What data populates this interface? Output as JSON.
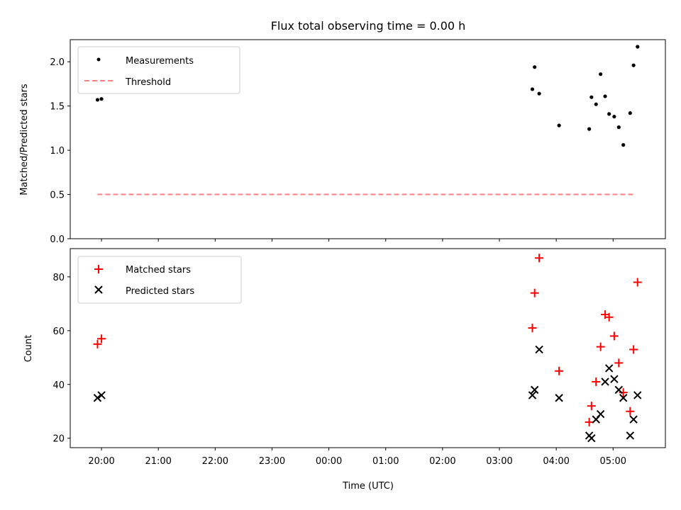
{
  "title": "Flux total observing time = 0.00 h",
  "colors": {
    "measurement": "#000000",
    "threshold": "#ff7f7f",
    "matched": "#ff0000",
    "predicted": "#000000"
  },
  "chart_data": [
    {
      "type": "scatter",
      "title": "Flux total observing time = 0.00 h",
      "xlabel": "",
      "ylabel": "Matched/Predicted stars",
      "ylim": [
        0.0,
        2.25
      ],
      "yticks": [
        0.0,
        0.5,
        1.0,
        1.5,
        2.0
      ],
      "ytick_labels": [
        "0.0",
        "0.5",
        "1.0",
        "1.5",
        "2.0"
      ],
      "x_unit": "hours since 20:00 UTC",
      "xlim": [
        -0.55,
        9.92
      ],
      "legend": {
        "placement": "top-left",
        "entries": [
          "Measurements",
          "Threshold"
        ]
      },
      "series": [
        {
          "name": "Measurements",
          "marker": "dot",
          "points": [
            {
              "x": -0.07,
              "y": 1.57
            },
            {
              "x": 0.0,
              "y": 1.58
            },
            {
              "x": 7.58,
              "y": 1.69
            },
            {
              "x": 7.62,
              "y": 1.94
            },
            {
              "x": 7.7,
              "y": 1.64
            },
            {
              "x": 8.05,
              "y": 1.28
            },
            {
              "x": 8.58,
              "y": 1.24
            },
            {
              "x": 8.62,
              "y": 1.6
            },
            {
              "x": 8.7,
              "y": 1.52
            },
            {
              "x": 8.78,
              "y": 1.86
            },
            {
              "x": 8.86,
              "y": 1.61
            },
            {
              "x": 8.93,
              "y": 1.41
            },
            {
              "x": 9.02,
              "y": 1.38
            },
            {
              "x": 9.1,
              "y": 1.26
            },
            {
              "x": 9.18,
              "y": 1.06
            },
            {
              "x": 9.3,
              "y": 1.42
            },
            {
              "x": 9.36,
              "y": 1.96
            },
            {
              "x": 9.43,
              "y": 2.17
            }
          ]
        },
        {
          "name": "Threshold",
          "marker": "dashed-line",
          "points": [
            {
              "x": -0.07,
              "y": 0.5
            },
            {
              "x": 9.38,
              "y": 0.5
            }
          ]
        }
      ]
    },
    {
      "type": "scatter",
      "title": "",
      "xlabel": "Time (UTC)",
      "ylabel": "Count",
      "ylim": [
        16.5,
        90.5
      ],
      "yticks": [
        20,
        40,
        60,
        80
      ],
      "ytick_labels": [
        "20",
        "40",
        "60",
        "80"
      ],
      "x_unit": "hours since 20:00 UTC",
      "xlim": [
        -0.55,
        9.92
      ],
      "xticks": [
        0,
        1,
        2,
        3,
        4,
        5,
        6,
        7,
        8,
        9
      ],
      "xtick_labels": [
        "20:00",
        "21:00",
        "22:00",
        "23:00",
        "00:00",
        "01:00",
        "02:00",
        "03:00",
        "04:00",
        "05:00"
      ],
      "legend": {
        "placement": "top-left",
        "entries": [
          "Matched stars",
          "Predicted stars"
        ]
      },
      "series": [
        {
          "name": "Matched stars",
          "marker": "plus",
          "points": [
            {
              "x": -0.07,
              "y": 55
            },
            {
              "x": 0.0,
              "y": 57
            },
            {
              "x": 7.58,
              "y": 61
            },
            {
              "x": 7.62,
              "y": 74
            },
            {
              "x": 7.7,
              "y": 87
            },
            {
              "x": 8.05,
              "y": 45
            },
            {
              "x": 8.58,
              "y": 26
            },
            {
              "x": 8.62,
              "y": 32
            },
            {
              "x": 8.7,
              "y": 41
            },
            {
              "x": 8.78,
              "y": 54
            },
            {
              "x": 8.86,
              "y": 66
            },
            {
              "x": 8.93,
              "y": 65
            },
            {
              "x": 9.02,
              "y": 58
            },
            {
              "x": 9.1,
              "y": 48
            },
            {
              "x": 9.18,
              "y": 37
            },
            {
              "x": 9.3,
              "y": 30
            },
            {
              "x": 9.36,
              "y": 53
            },
            {
              "x": 9.43,
              "y": 78
            }
          ]
        },
        {
          "name": "Predicted stars",
          "marker": "x",
          "points": [
            {
              "x": -0.07,
              "y": 35
            },
            {
              "x": 0.0,
              "y": 36
            },
            {
              "x": 7.58,
              "y": 36
            },
            {
              "x": 7.62,
              "y": 38
            },
            {
              "x": 7.7,
              "y": 53
            },
            {
              "x": 8.05,
              "y": 35
            },
            {
              "x": 8.58,
              "y": 21
            },
            {
              "x": 8.62,
              "y": 20
            },
            {
              "x": 8.7,
              "y": 27
            },
            {
              "x": 8.78,
              "y": 29
            },
            {
              "x": 8.86,
              "y": 41
            },
            {
              "x": 8.93,
              "y": 46
            },
            {
              "x": 9.02,
              "y": 42
            },
            {
              "x": 9.1,
              "y": 38
            },
            {
              "x": 9.18,
              "y": 35
            },
            {
              "x": 9.3,
              "y": 21
            },
            {
              "x": 9.36,
              "y": 27
            },
            {
              "x": 9.43,
              "y": 36
            }
          ]
        }
      ]
    }
  ]
}
